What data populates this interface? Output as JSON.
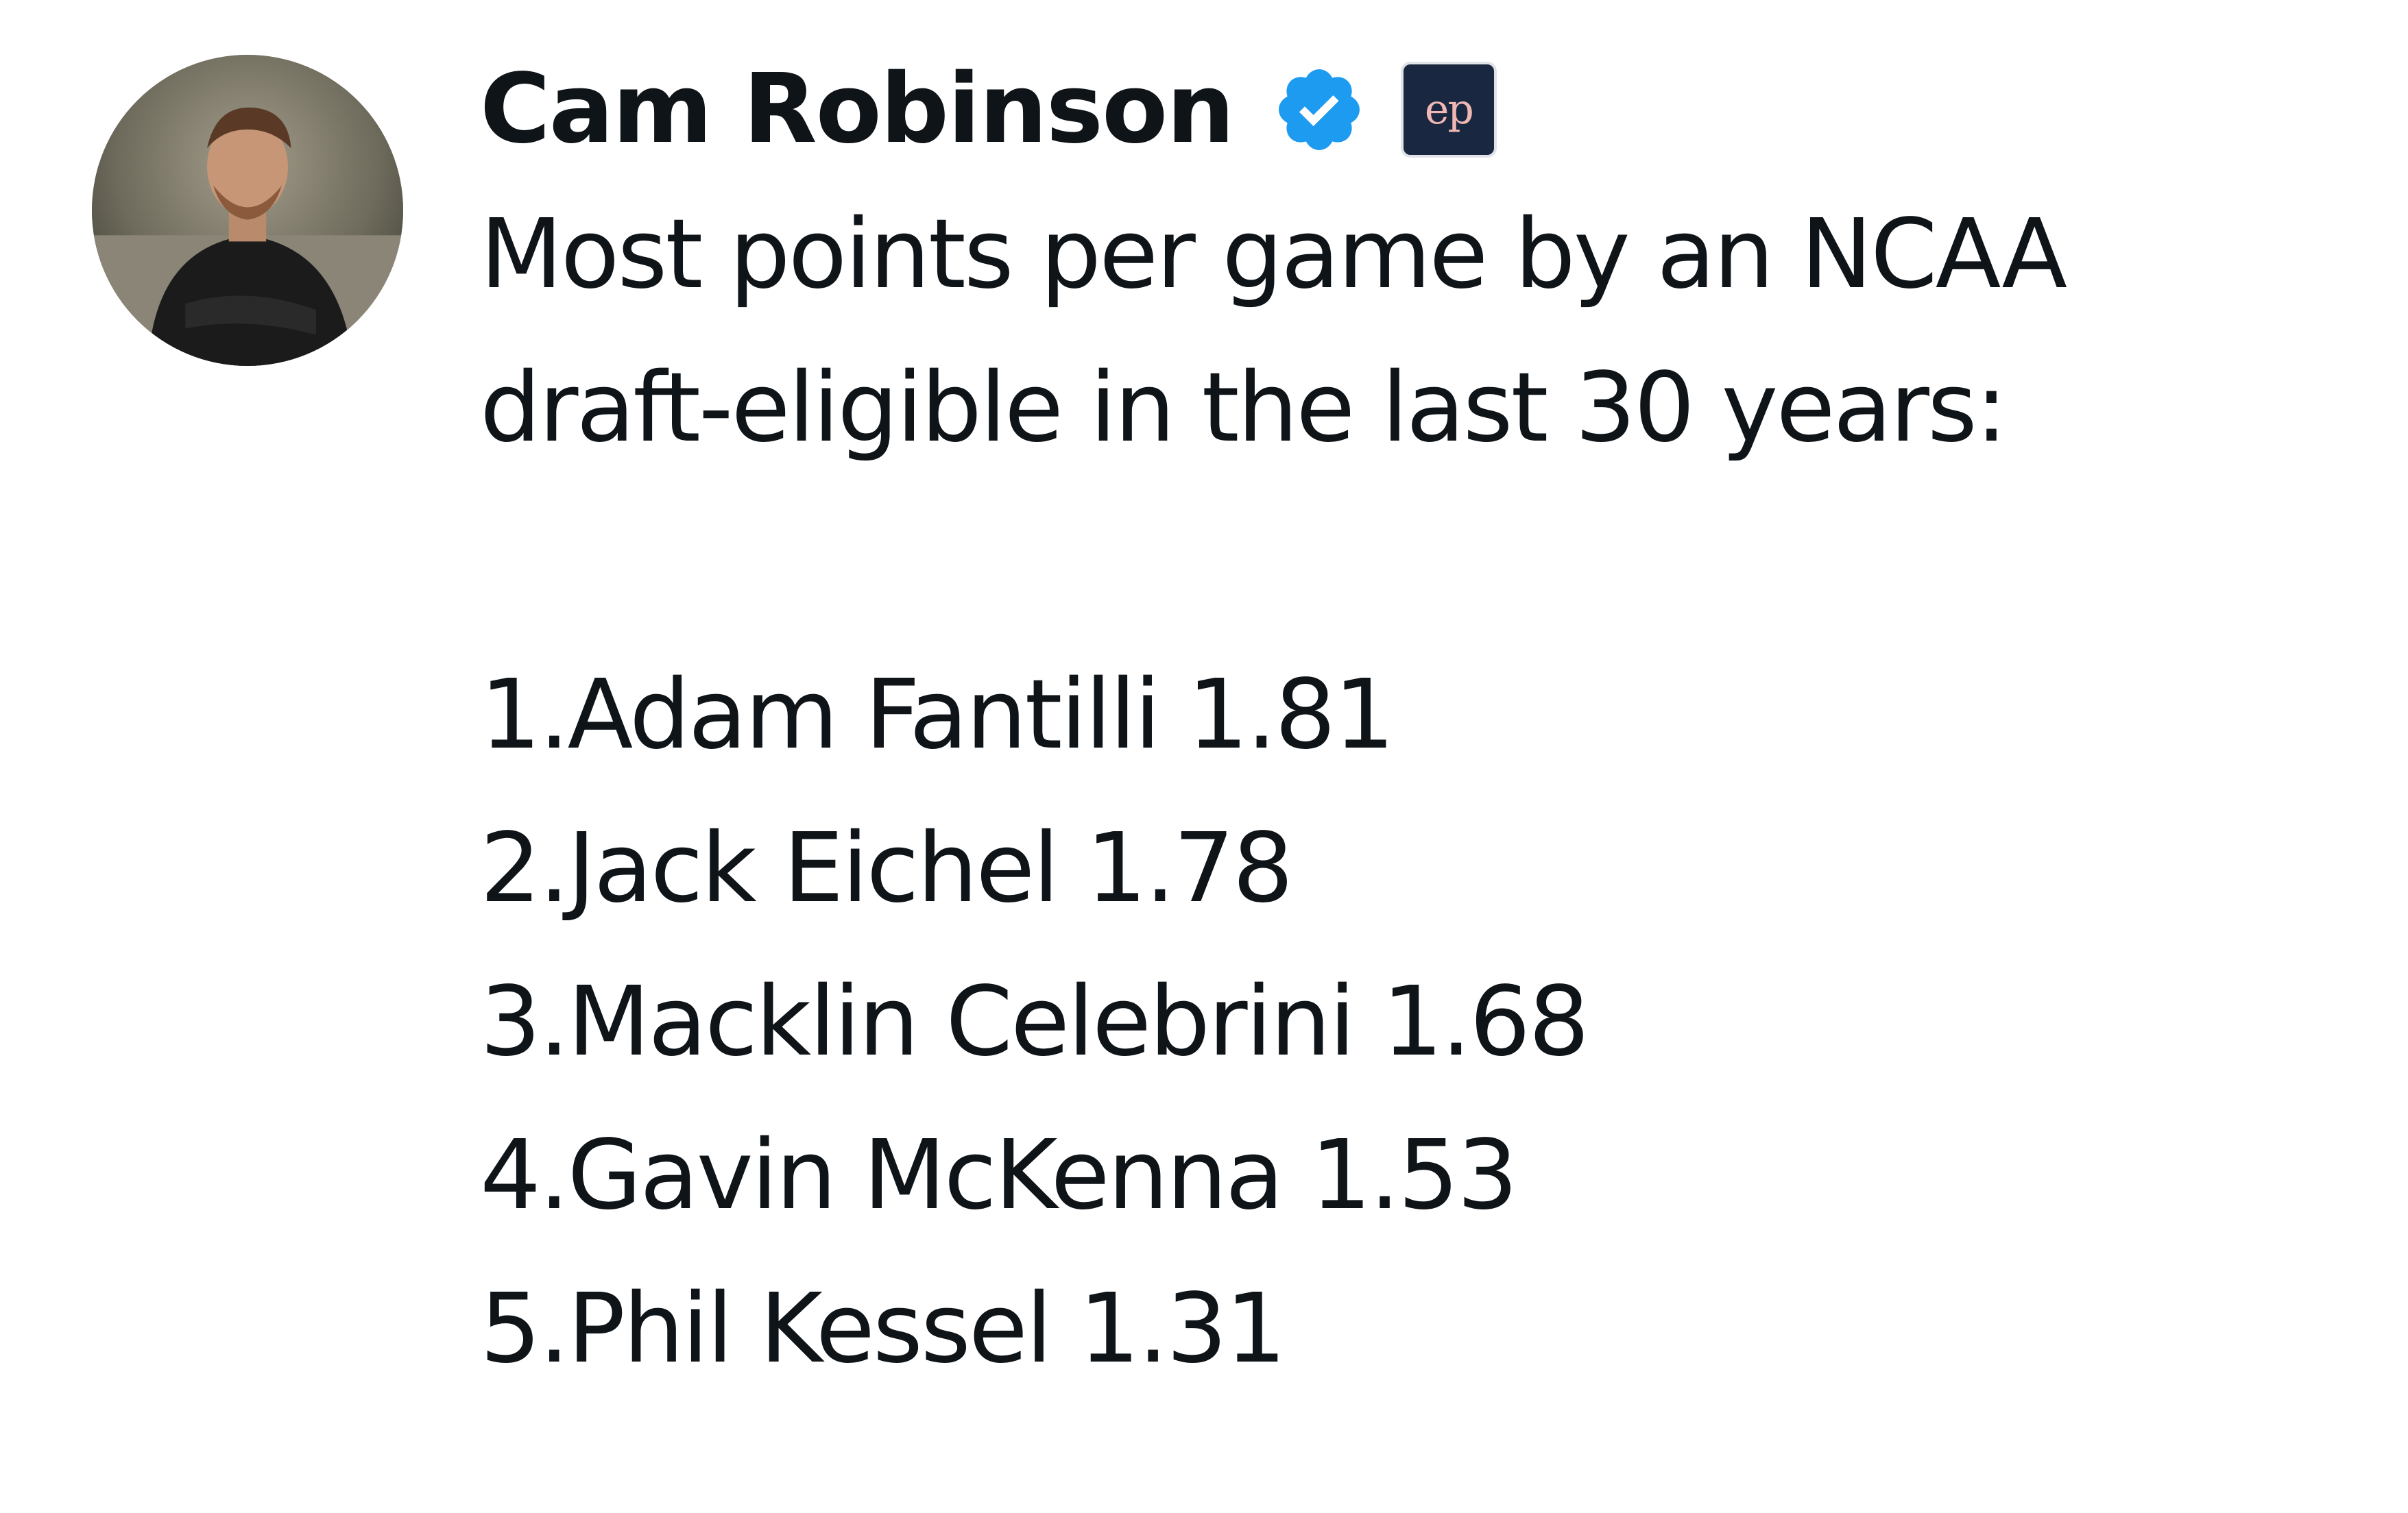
{
  "author": {
    "display_name": "Cam Robinson",
    "verified_icon": "verified-badge-icon",
    "affiliate_badge_text": "ep",
    "avatar_icon": "profile-photo"
  },
  "tweet": {
    "intro_lines": [
      "Most points per game by an NCAA",
      "draft-eligible in the last 30 years:"
    ],
    "list_items": [
      "1.Adam Fantilli 1.81",
      "2.Jack Eichel 1.78",
      "3.Macklin Celebrini 1.68",
      "4.Gavin McKenna 1.53",
      "5.Phil Kessel 1.31"
    ]
  },
  "colors": {
    "verified_blue": "#1d9bf0",
    "affiliate_bg": "#1a2740",
    "text": "#0f1419"
  }
}
